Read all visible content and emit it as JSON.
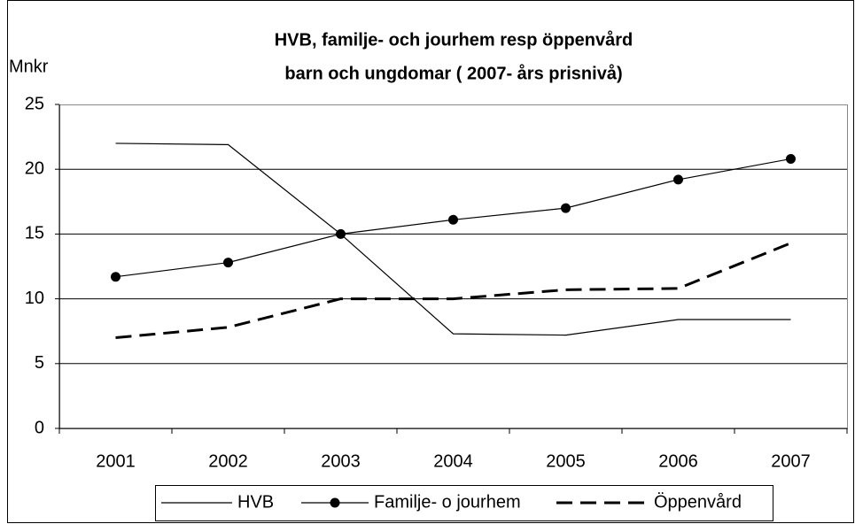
{
  "chart_data": {
    "type": "line",
    "title": "HVB, familje- och jourhem resp öppenvård",
    "subtitle": "barn och ungdomar ( 2007- års prisnivå)",
    "y_label": "Mnkr",
    "categories": [
      "2001",
      "2002",
      "2003",
      "2004",
      "2005",
      "2006",
      "2007"
    ],
    "series": [
      {
        "name": "HVB",
        "color": "#000000",
        "dash": "solid",
        "width": 1.2,
        "values": [
          22.0,
          21.9,
          15.0,
          7.3,
          7.2,
          8.4,
          8.4
        ]
      },
      {
        "name": "Familje- o jourhem",
        "color": "#000000",
        "dash": "solid",
        "width": 1.2,
        "marker": "circle",
        "values": [
          11.7,
          12.8,
          15.0,
          16.1,
          17.0,
          19.2,
          20.8
        ]
      },
      {
        "name": "Öppenvård",
        "color": "#000000",
        "dash": "dashed",
        "width": 3,
        "values": [
          7.0,
          7.8,
          10.0,
          10.0,
          10.7,
          10.8,
          14.3
        ]
      }
    ],
    "ylim": [
      0,
      25
    ],
    "yticks": [
      0,
      5,
      10,
      15,
      20,
      25
    ],
    "grid": true,
    "legend": "bottom"
  }
}
